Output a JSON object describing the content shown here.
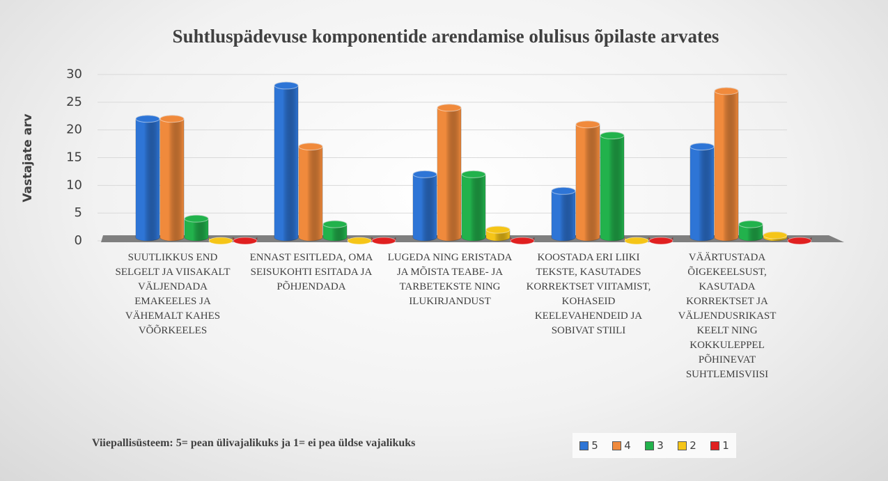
{
  "chart_data": {
    "type": "bar",
    "title": "Suhtluspädevuse komponentide arendamise olulisus õpilaste arvates",
    "y_label": "Vastajate arv",
    "legend_title": "Viiepallisüsteem: 5= pean ülivajalikuks ja 1= ei pea üldse vajalikuks",
    "categories": [
      "SUUTLIKKUS END SELGELT JA VIISAKALT VÄLJENDADA EMAKEELES JA VÄHEMALT KAHES VÕÕRKEELES",
      "ENNAST ESITLEDA, OMA SEISUKOHTI ESITADA JA PÕHJENDADA",
      "LUGEDA NING ERISTADA JA MÕISTA TEABE- JA TARBETEKSTE NING ILUKIRJANDUST",
      "KOOSTADA ERI LIIKI TEKSTE, KASUTADES KORREKTSET VIITAMIST, KOHASEID KEELEVAHENDEID JA SOBIVAT STIILI",
      "VÄÄRTUSTADA ÕIGEKEELSUST, KASUTADA KORREKTSET JA VÄLJENDUSRIKAST KEELT NING KOKKULEPPEL PÕHINEVAT SUHTLEMISVIISI"
    ],
    "series": [
      {
        "name": "5",
        "color": "#2e75d6",
        "values": [
          22,
          28,
          12,
          9,
          17
        ]
      },
      {
        "name": "4",
        "color": "#f08a3c",
        "values": [
          22,
          17,
          24,
          21,
          27
        ]
      },
      {
        "name": "3",
        "color": "#22b24c",
        "values": [
          4,
          3,
          12,
          19,
          3
        ]
      },
      {
        "name": "2",
        "color": "#f5c518",
        "values": [
          0,
          0,
          2,
          0,
          1
        ]
      },
      {
        "name": "1",
        "color": "#e02020",
        "values": [
          0,
          0,
          0,
          0,
          0
        ]
      }
    ],
    "ylim": [
      0,
      30
    ],
    "yticks": [
      0,
      5,
      10,
      15,
      20,
      25,
      30
    ],
    "grid": true
  }
}
